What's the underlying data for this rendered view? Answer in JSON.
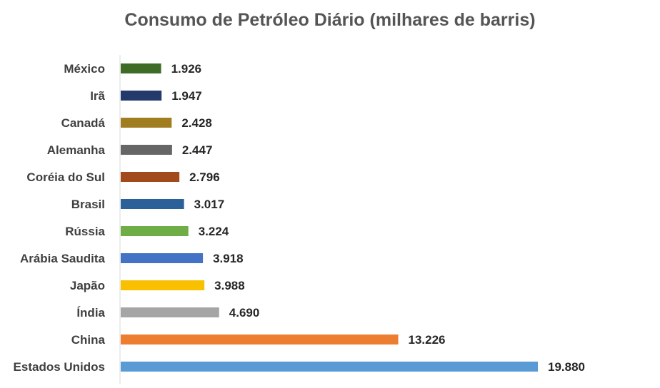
{
  "chart_data": {
    "type": "bar",
    "orientation": "horizontal",
    "title": "Consumo de Petróleo Diário (milhares de barris)",
    "xlabel": "",
    "ylabel": "",
    "xlim": [
      0,
      21000
    ],
    "grid": false,
    "legend": "none",
    "categories": [
      "México",
      "Irã",
      "Canadá",
      "Alemanha",
      "Coréia do Sul",
      "Brasil",
      "Rússia",
      "Arábia Saudita",
      "Japão",
      "Índia",
      "China",
      "Estados Unidos"
    ],
    "values": [
      1926,
      1947,
      2428,
      2447,
      2796,
      3017,
      3224,
      3918,
      3988,
      4690,
      13226,
      19880
    ],
    "value_labels": [
      "1.926",
      "1.947",
      "2.428",
      "2.447",
      "2.796",
      "3.017",
      "3.224",
      "3.918",
      "3.988",
      "4.690",
      "13.226",
      "19.880"
    ],
    "colors": [
      "#3E6B26",
      "#233A6B",
      "#A07E1F",
      "#666666",
      "#A24A1B",
      "#2B6099",
      "#6FAD47",
      "#4472C4",
      "#F9C000",
      "#A5A5A5",
      "#ED7D31",
      "#5B9BD5"
    ],
    "axis_color": "#D9D9D9"
  }
}
